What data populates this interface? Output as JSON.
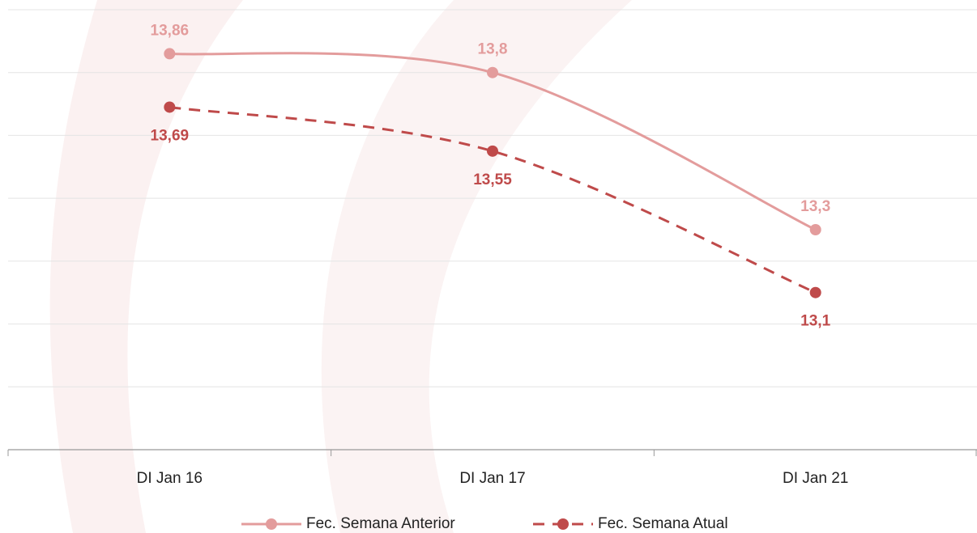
{
  "chart_data": {
    "type": "line",
    "categories": [
      "DI Jan 16",
      "DI Jan 17",
      "DI Jan 21"
    ],
    "series": [
      {
        "name": "Fec. Semana Anterior",
        "color": "#e39c9c",
        "dash": false,
        "label_position": "above",
        "values": [
          13.86,
          13.8,
          13.3
        ],
        "value_labels": [
          "13,86",
          "13,8",
          "13,3"
        ]
      },
      {
        "name": "Fec. Semana Atual",
        "color": "#bf4a4a",
        "dash": true,
        "label_position": "below",
        "values": [
          13.69,
          13.55,
          13.1
        ],
        "value_labels": [
          "13,69",
          "13,55",
          "13,1"
        ]
      }
    ],
    "ylim": [
      12.6,
      14.0
    ],
    "yticks": [
      12.8,
      13.0,
      13.2,
      13.4,
      13.6,
      13.8,
      14.0
    ],
    "grid": true,
    "legend": "bottom"
  }
}
